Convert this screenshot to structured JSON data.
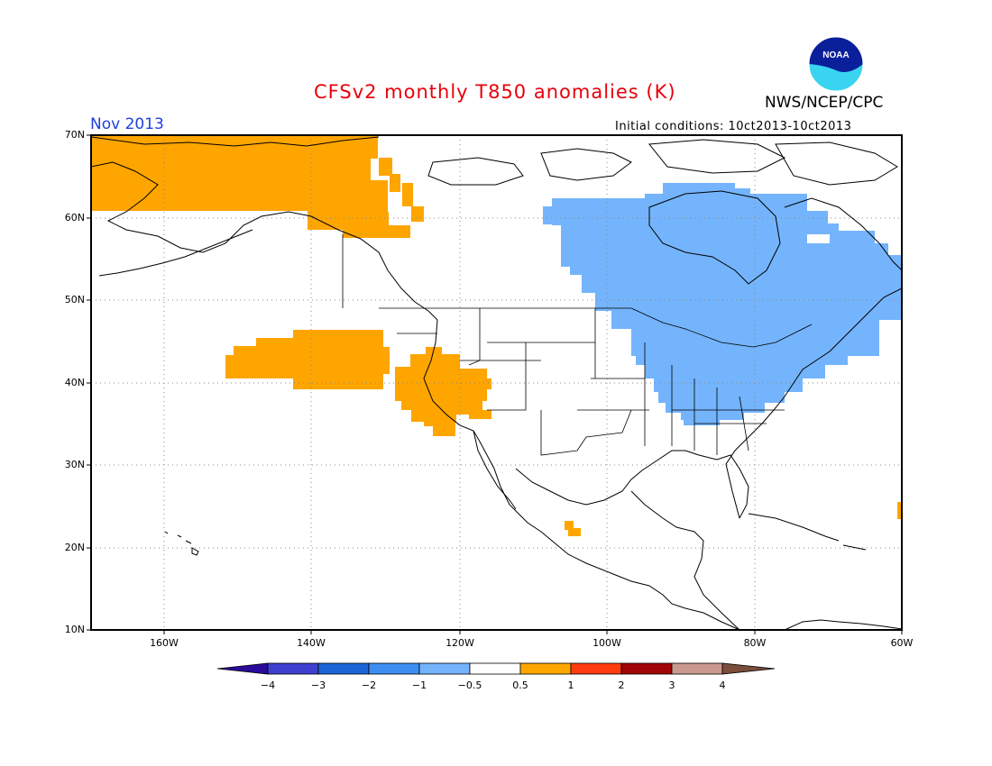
{
  "title": "CFSv2 monthly T850 anomalies (K)",
  "org": "NWS/NCEP/CPC",
  "period": "Nov 2013",
  "initial_conditions": "Initial conditions: 10ct2013-10ct2013",
  "logo": {
    "icon": "noaa-logo-icon",
    "text": "NOAA"
  },
  "map": {
    "projection": "lat-lon",
    "lon_range": [
      -171,
      -60
    ],
    "lat_range": [
      10,
      70
    ],
    "lat_labels": [
      "70N",
      "60N",
      "50N",
      "40N",
      "30N",
      "20N",
      "10N"
    ],
    "lon_labels": [
      "160W",
      "140W",
      "120W",
      "100W",
      "80W",
      "60W"
    ],
    "gridlines": "dotted",
    "warm_color": "#fea500",
    "cool_color": "#74b4fc",
    "anomaly_regions": [
      {
        "name": "alaska",
        "category": "0.5 to 1",
        "approx_lon": [
          -171,
          -126
        ],
        "approx_lat": [
          58,
          70
        ]
      },
      {
        "name": "northeast-pacific",
        "category": "0.5 to 1",
        "approx_lon": [
          -152,
          -130
        ],
        "approx_lat": [
          39.5,
          46
        ]
      },
      {
        "name": "us-west-coast",
        "category": "0.5 to 1",
        "approx_lon": [
          -129,
          -115
        ],
        "approx_lat": [
          33,
          43.5
        ]
      },
      {
        "name": "central-mexico",
        "category": "0.5 to 1",
        "approx_lon": [
          -105.5,
          -104
        ],
        "approx_lat": [
          21.5,
          23.5
        ]
      },
      {
        "name": "canada-eastern-us",
        "category": "-1 to -0.5",
        "approx_lon": [
          -110,
          -60
        ],
        "approx_lat": [
          35,
          65
        ]
      }
    ]
  },
  "colorbar": {
    "boundaries": [
      "-4",
      "-3",
      "-2",
      "-1",
      "-0.5",
      "0.5",
      "1",
      "2",
      "3",
      "4"
    ],
    "colors": [
      "#2b0b9a",
      "#3f3fcf",
      "#1b66d6",
      "#3d8ef2",
      "#74b4fc",
      "#ffffff",
      "#fea500",
      "#ff3c0f",
      "#a10505",
      "#c99a8d",
      "#7a4e3b"
    ]
  }
}
